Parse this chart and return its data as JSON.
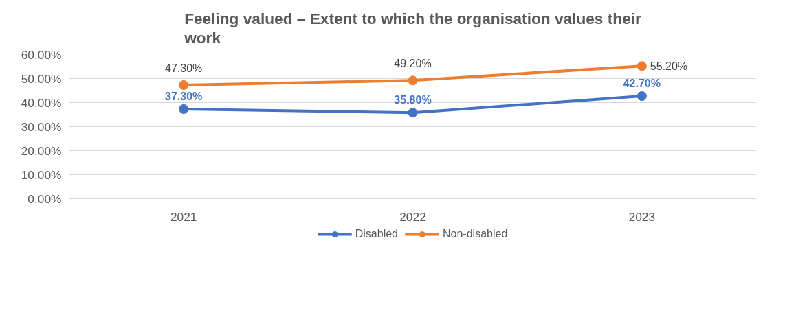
{
  "chart_data": {
    "type": "line",
    "title": "Feeling valued – Extent to which the organisation values their work",
    "categories": [
      "2021",
      "2022",
      "2023"
    ],
    "series": [
      {
        "name": "Disabled",
        "color": "#4472c4",
        "values": [
          37.3,
          35.8,
          42.7
        ],
        "value_labels": [
          "37.30%",
          "35.80%",
          "42.70%"
        ]
      },
      {
        "name": "Non-disabled",
        "color": "#ed7d31",
        "values": [
          47.3,
          49.2,
          55.2
        ],
        "value_labels": [
          "47.30%",
          "49.20%",
          "55.20%"
        ]
      }
    ],
    "ylim": [
      0,
      60
    ],
    "yticks": [
      {
        "value": 0,
        "label": "0.00%"
      },
      {
        "value": 10,
        "label": "10.00%"
      },
      {
        "value": 20,
        "label": "20.00%"
      },
      {
        "value": 30,
        "label": "30.00%"
      },
      {
        "value": 40,
        "label": "40.00%"
      },
      {
        "value": 50,
        "label": "50.00%"
      },
      {
        "value": 60,
        "label": "60.00%"
      }
    ],
    "grid": "y",
    "legend": "bottom",
    "marker": "circle",
    "line_style": "solid"
  }
}
